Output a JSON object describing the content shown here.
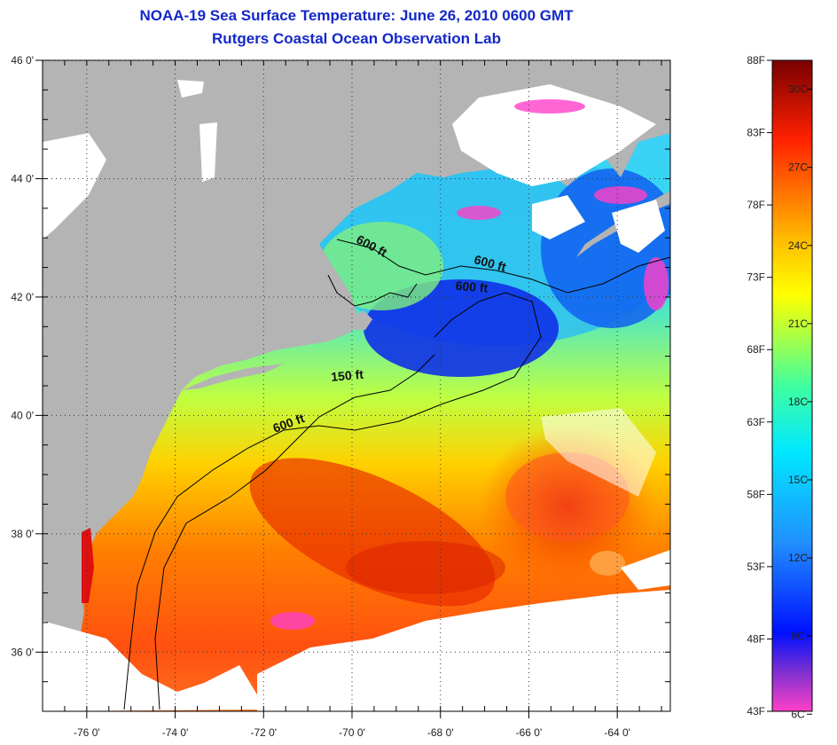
{
  "title": "NOAA-19 Sea Surface Temperature:  June 26, 2010 0600 GMT",
  "subtitle": "Rutgers Coastal Ocean Observation Lab",
  "map": {
    "lon_range": [
      -77,
      -62.8
    ],
    "lat_range": [
      35,
      46
    ],
    "lon_ticks": [
      {
        "value": -76,
        "label": "-76 0'"
      },
      {
        "value": -74,
        "label": "-74 0'"
      },
      {
        "value": -72,
        "label": "-72 0'"
      },
      {
        "value": -70,
        "label": "-70 0'"
      },
      {
        "value": -68,
        "label": "-68 0'"
      },
      {
        "value": -66,
        "label": "-66 0'"
      },
      {
        "value": -64,
        "label": "-64 0'"
      }
    ],
    "lat_ticks": [
      {
        "value": 46,
        "label": "46 0'"
      },
      {
        "value": 44,
        "label": "44 0'"
      },
      {
        "value": 42,
        "label": "42 0'"
      },
      {
        "value": 40,
        "label": "40 0'"
      },
      {
        "value": 38,
        "label": "38 0'"
      },
      {
        "value": 36,
        "label": "36 0'"
      }
    ],
    "contour_labels": [
      {
        "text": "600 ft",
        "lon": -69.6,
        "lat": 42.8,
        "angle": 28
      },
      {
        "text": "600 ft",
        "lon": -66.9,
        "lat": 42.5,
        "angle": 15
      },
      {
        "text": "600 ft",
        "lon": -67.3,
        "lat": 42.1,
        "angle": 5
      },
      {
        "text": "150 ft",
        "lon": -70.1,
        "lat": 40.6,
        "angle": -5
      },
      {
        "text": "600 ft",
        "lon": -71.4,
        "lat": 39.8,
        "angle": -20
      }
    ],
    "colors": {
      "land": "#b4b4b4",
      "cloud": "#ffffff",
      "grid": "#333333"
    }
  },
  "colorbar": {
    "f_labels": [
      {
        "value": 88,
        "label": "88F"
      },
      {
        "value": 83,
        "label": "83F"
      },
      {
        "value": 78,
        "label": "78F"
      },
      {
        "value": 73,
        "label": "73F"
      },
      {
        "value": 68,
        "label": "68F"
      },
      {
        "value": 63,
        "label": "63F"
      },
      {
        "value": 58,
        "label": "58F"
      },
      {
        "value": 53,
        "label": "53F"
      },
      {
        "value": 48,
        "label": "48F"
      },
      {
        "value": 43,
        "label": "43F"
      }
    ],
    "c_labels": [
      {
        "value": 30,
        "label": "30C"
      },
      {
        "value": 27,
        "label": "27C"
      },
      {
        "value": 24,
        "label": "24C"
      },
      {
        "value": 21,
        "label": "21C"
      },
      {
        "value": 18,
        "label": "18C"
      },
      {
        "value": 15,
        "label": "15C"
      },
      {
        "value": 12,
        "label": "12C"
      },
      {
        "value": 9,
        "label": "9C"
      },
      {
        "value": 6,
        "label": "6C"
      }
    ],
    "range_f": [
      43,
      88
    ]
  }
}
